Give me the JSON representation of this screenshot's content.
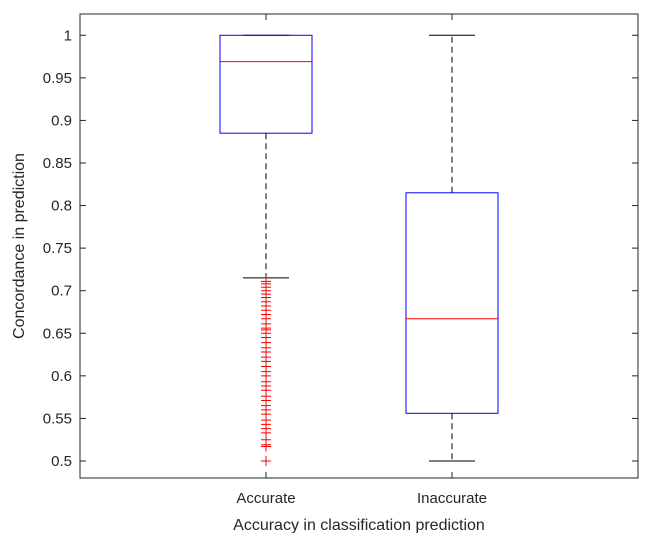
{
  "chart_data": {
    "type": "box",
    "xlabel": "Accuracy in classification prediction",
    "ylabel": "Concordance in prediction",
    "categories": [
      "Accurate",
      "Inaccurate"
    ],
    "ylim": [
      0.48,
      1.025
    ],
    "yticks": [
      0.5,
      0.55,
      0.6,
      0.65,
      0.7,
      0.75,
      0.8,
      0.85,
      0.9,
      0.95,
      1
    ],
    "ytick_labels": [
      "0.5",
      "0.55",
      "0.6",
      "0.65",
      "0.7",
      "0.75",
      "0.8",
      "0.85",
      "0.9",
      "0.95",
      "1"
    ],
    "grid": false,
    "boxes": [
      {
        "category": "Accurate",
        "whisker_low": 0.715,
        "q1": 0.885,
        "median": 0.969,
        "q3": 1.0,
        "whisker_high": 1.0,
        "outliers": [
          0.5,
          0.517,
          0.519,
          0.525,
          0.533,
          0.538,
          0.543,
          0.548,
          0.555,
          0.56,
          0.565,
          0.571,
          0.576,
          0.583,
          0.588,
          0.593,
          0.6,
          0.605,
          0.611,
          0.617,
          0.622,
          0.628,
          0.633,
          0.639,
          0.645,
          0.65,
          0.654,
          0.656,
          0.661,
          0.667,
          0.672,
          0.677,
          0.682,
          0.687,
          0.692,
          0.696,
          0.7,
          0.704,
          0.708,
          0.711
        ]
      },
      {
        "category": "Inaccurate",
        "whisker_low": 0.5,
        "q1": 0.556,
        "median": 0.667,
        "q3": 0.815,
        "whisker_high": 1.0,
        "outliers": []
      }
    ],
    "colors": {
      "box": "#0000ff",
      "median": "#ff0000",
      "whisker": "#000000",
      "outlier": "#ff0000"
    }
  }
}
